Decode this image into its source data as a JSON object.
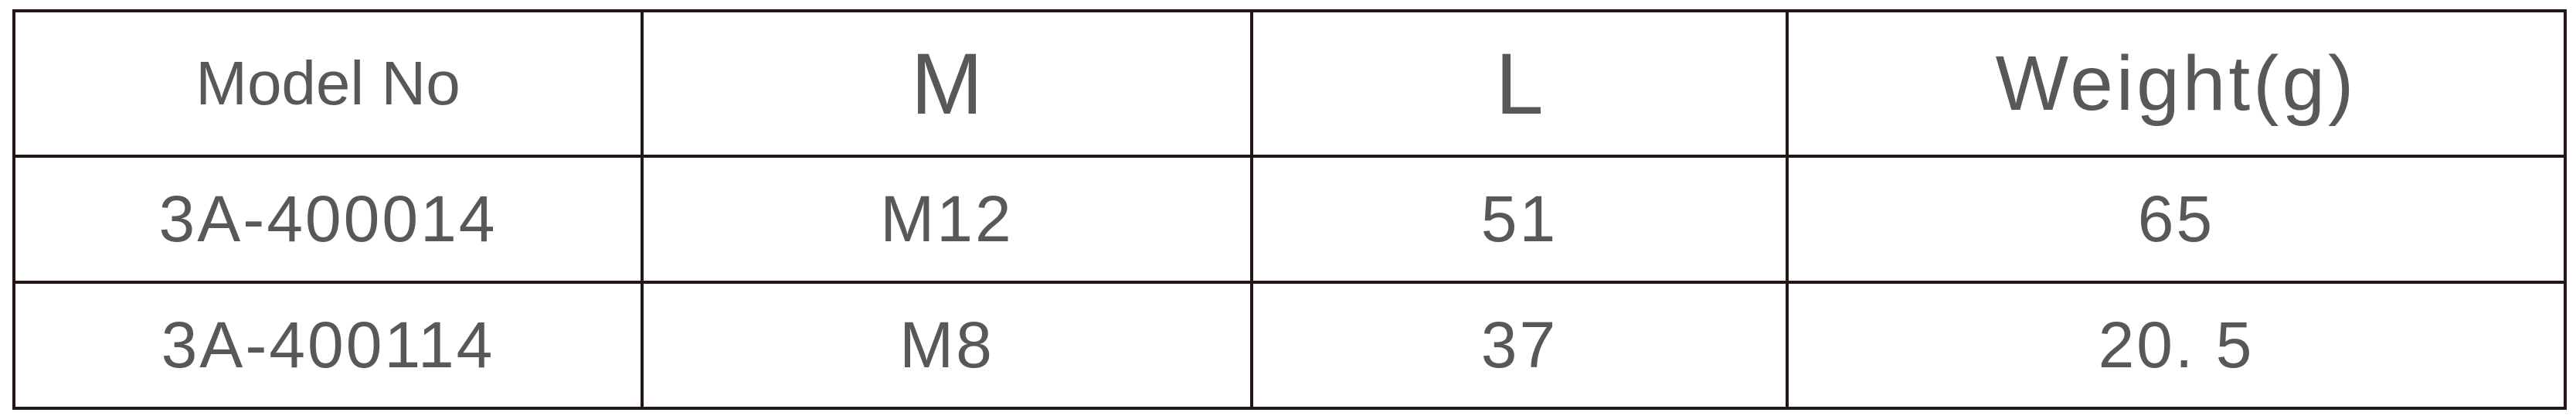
{
  "table": {
    "headers": [
      "Model No",
      "M",
      "L",
      "Weight(g)"
    ],
    "rows": [
      [
        "3A-400014",
        "M12",
        "51",
        "65"
      ],
      [
        "3A-400114",
        "M8",
        "37",
        "20. 5"
      ]
    ]
  },
  "colors": {
    "text": "#595757",
    "border": "#231815"
  }
}
